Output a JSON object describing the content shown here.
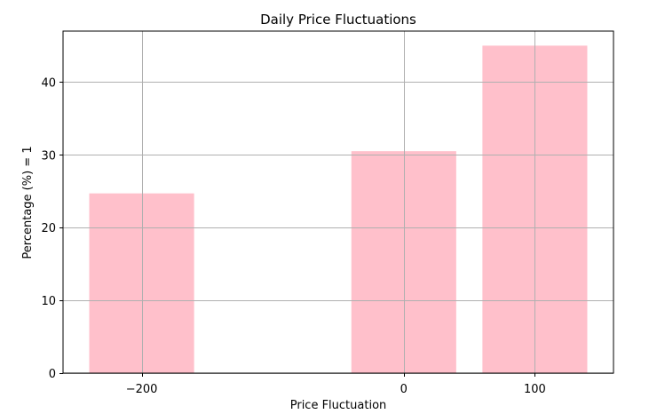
{
  "chart_data": {
    "type": "bar",
    "title": "Daily Price Fluctuations",
    "xlabel": "Price Fluctuation",
    "ylabel": "Percentage (%) = 1",
    "x": [
      -200,
      0,
      100
    ],
    "values": [
      24.7,
      30.5,
      45.0
    ],
    "bar_width": 80,
    "xlim": [
      -260,
      160
    ],
    "ylim": [
      0,
      47
    ],
    "x_ticks": [
      -200,
      0,
      100
    ],
    "x_tick_labels": [
      "−200",
      "0",
      "100"
    ],
    "y_ticks": [
      0,
      10,
      20,
      30,
      40
    ],
    "y_tick_labels": [
      "0",
      "10",
      "20",
      "30",
      "40"
    ],
    "grid": true,
    "bar_color": "#ffc0cb"
  }
}
